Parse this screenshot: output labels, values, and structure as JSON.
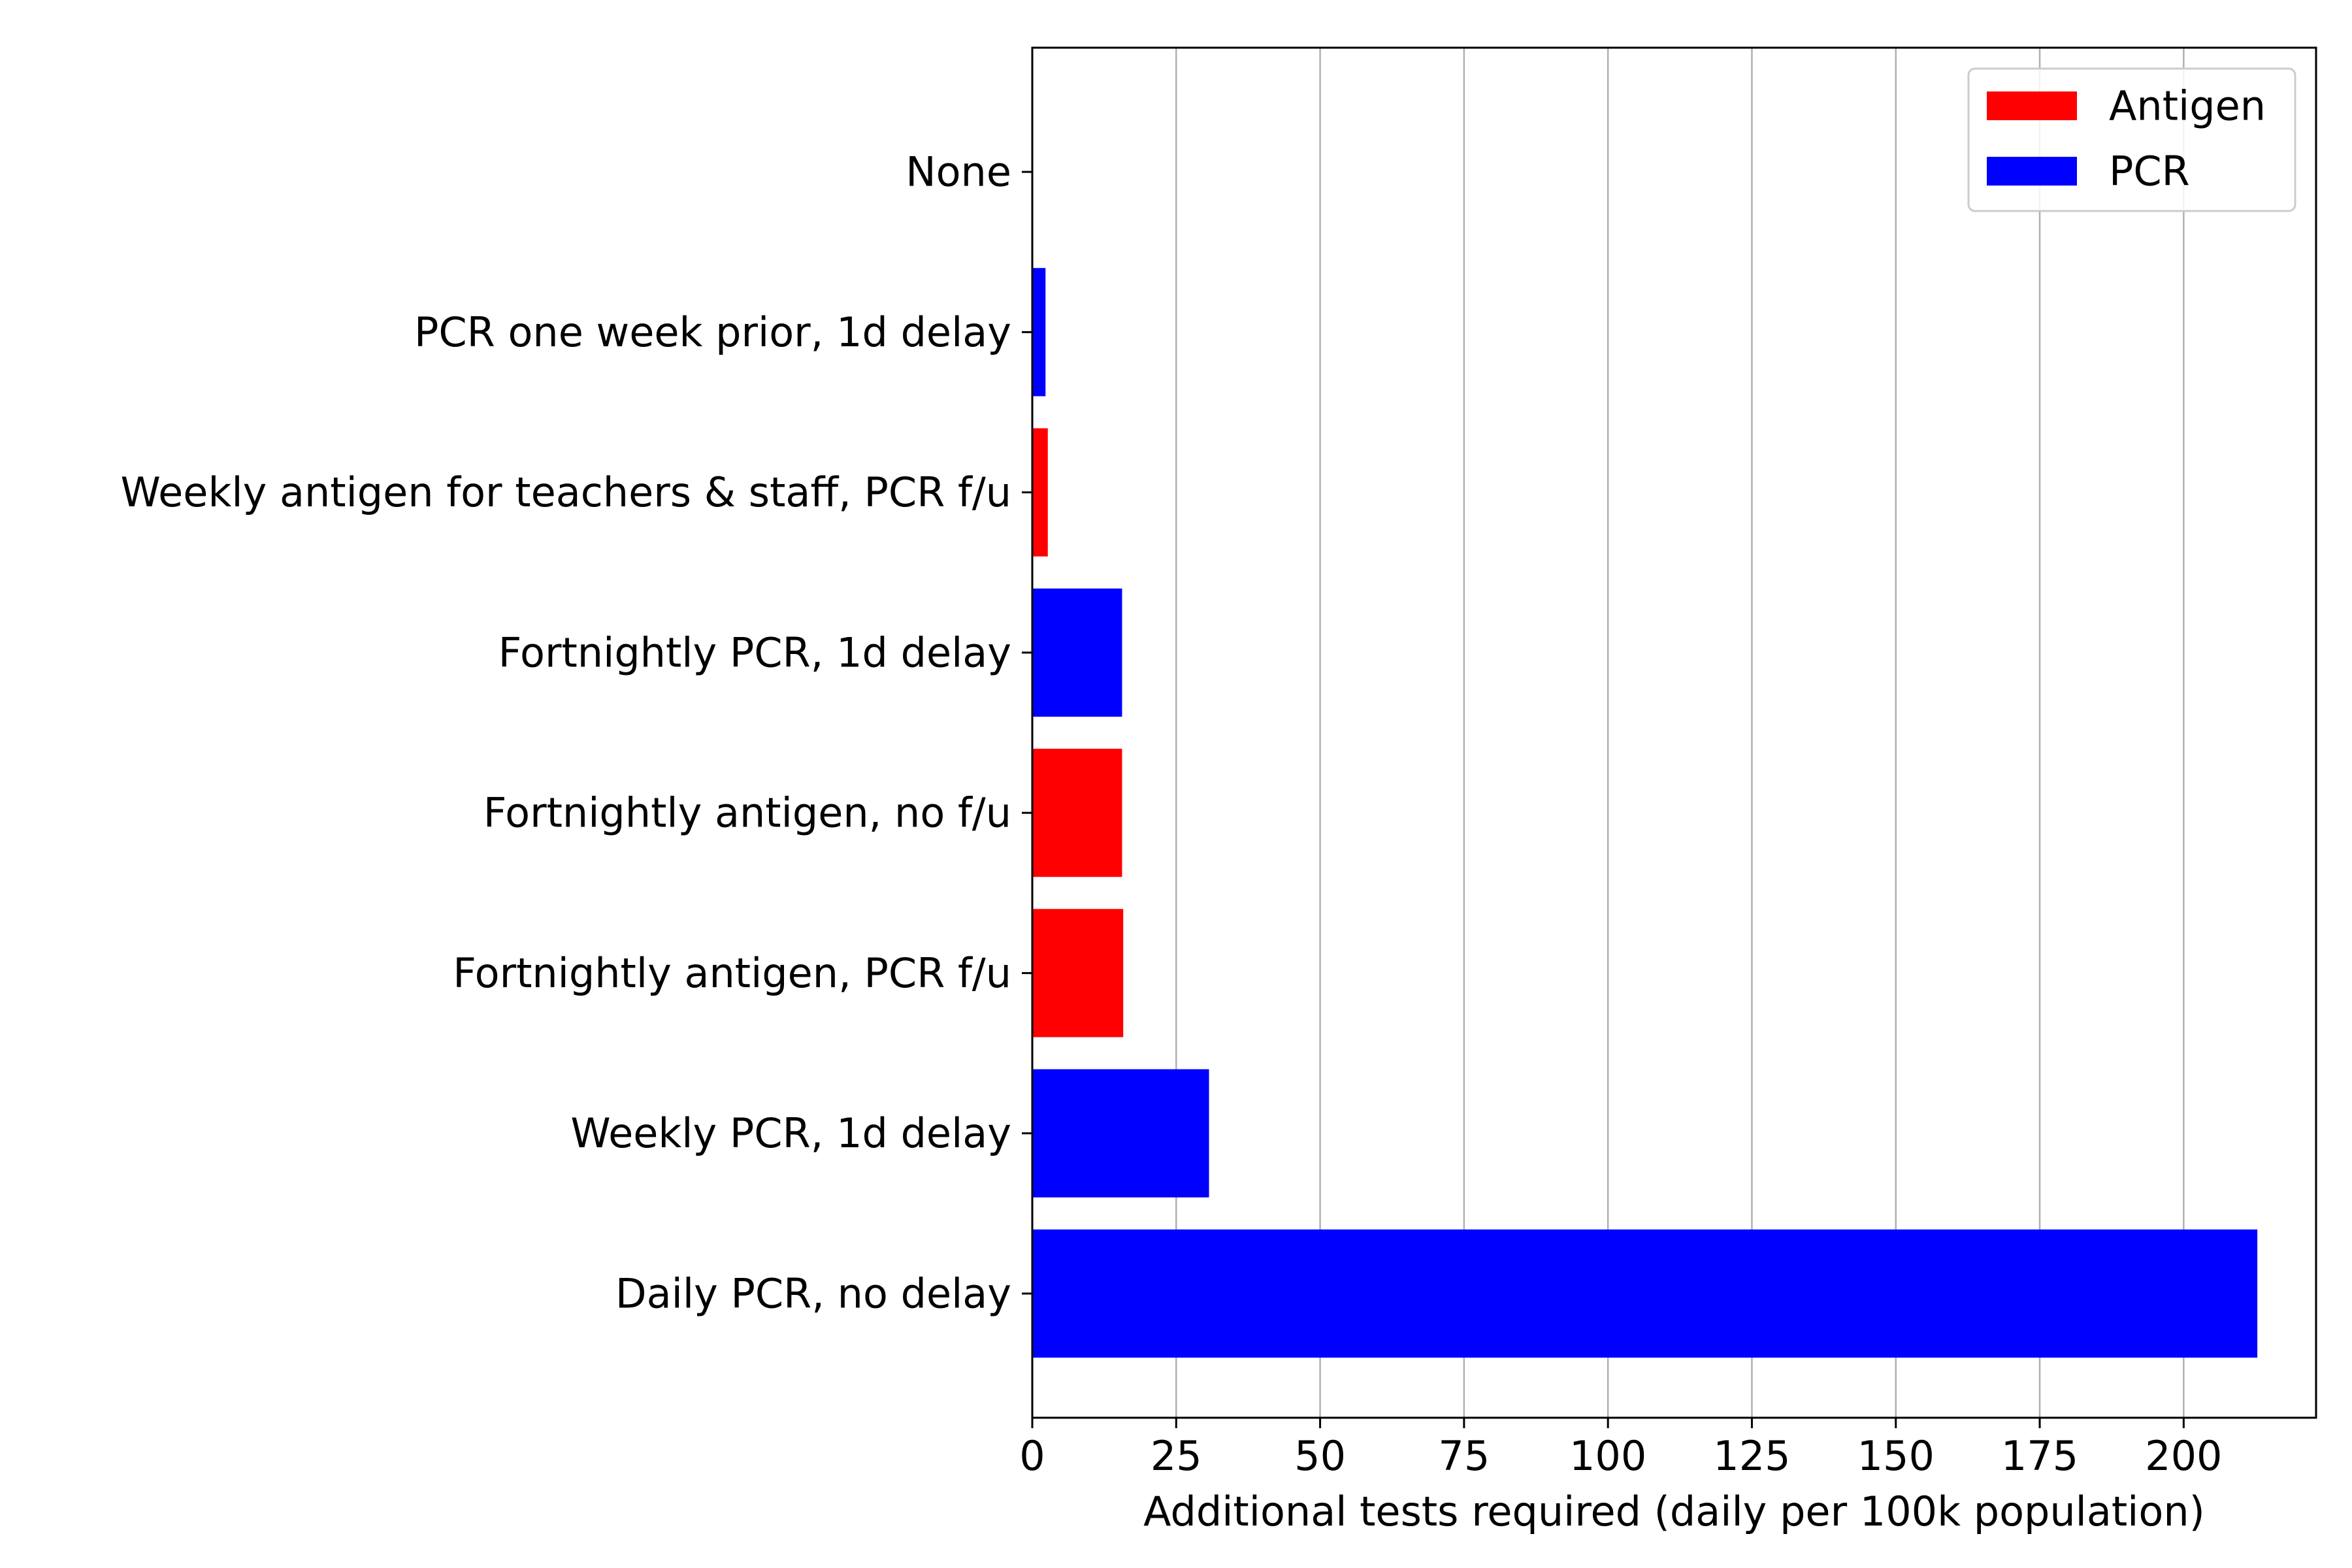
{
  "chart_data": {
    "type": "bar",
    "orientation": "horizontal",
    "title": "",
    "xlabel": "Additional tests required (daily per 100k population)",
    "ylabel": "",
    "xlim": [
      0,
      223
    ],
    "xticks": [
      0,
      25,
      50,
      75,
      100,
      125,
      150,
      175,
      200
    ],
    "grid": "x",
    "legend_position": "top-right",
    "categories": [
      "None",
      "PCR one week prior, 1d delay",
      "Weekly antigen for teachers & staff, PCR f/u",
      "Fortnightly PCR, 1d delay",
      "Fortnightly antigen, no f/u",
      "Fortnightly antigen, PCR f/u",
      "Weekly PCR, 1d delay",
      "Daily PCR, no delay"
    ],
    "values": [
      0,
      2.3,
      2.7,
      15.6,
      15.6,
      15.8,
      30.7,
      212.8
    ],
    "test_type": [
      "PCR",
      "PCR",
      "Antigen",
      "PCR",
      "Antigen",
      "Antigen",
      "PCR",
      "PCR"
    ],
    "legend": [
      {
        "name": "Antigen",
        "color": "#ff0000"
      },
      {
        "name": "PCR",
        "color": "#0000ff"
      }
    ],
    "colors": {
      "Antigen": "#ff0000",
      "PCR": "#0000ff",
      "grid": "#b0b0b0"
    }
  }
}
